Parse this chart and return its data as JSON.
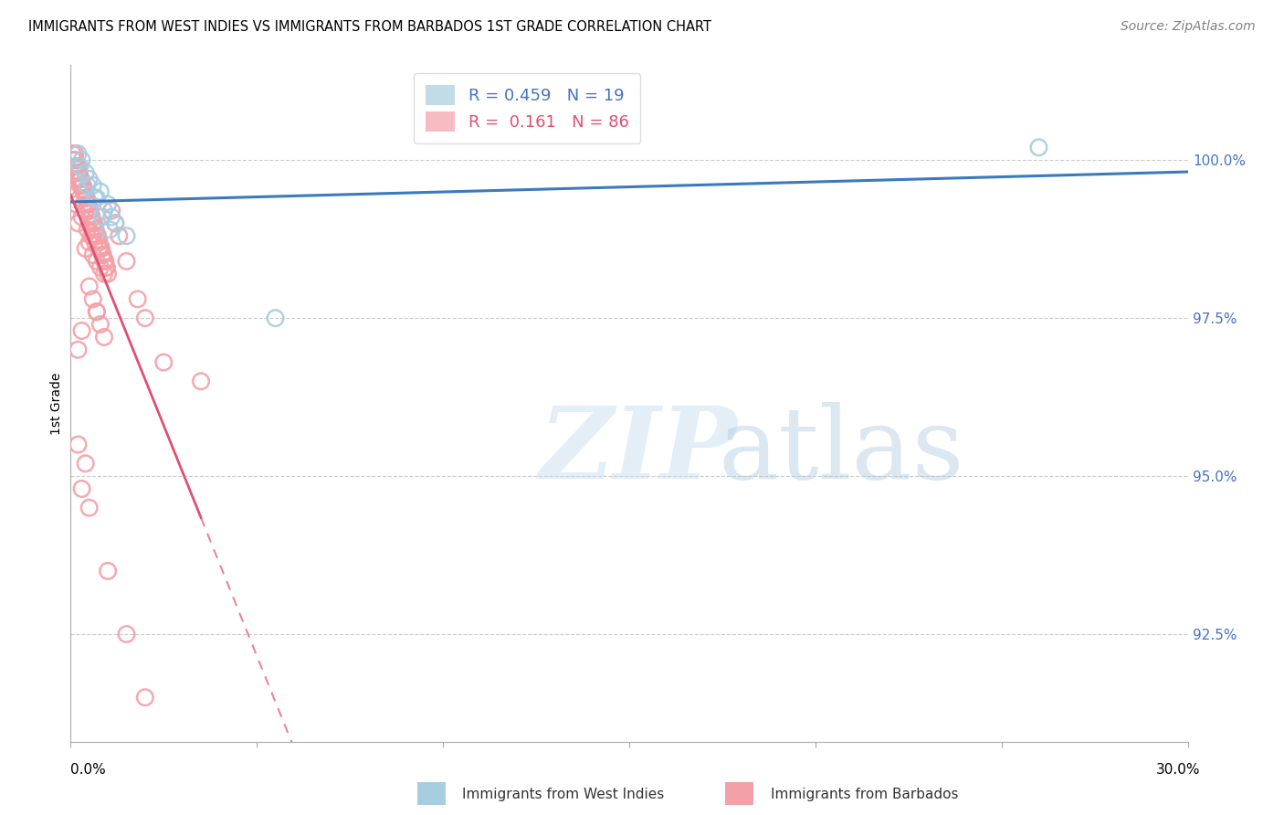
{
  "title": "IMMIGRANTS FROM WEST INDIES VS IMMIGRANTS FROM BARBADOS 1ST GRADE CORRELATION CHART",
  "source": "Source: ZipAtlas.com",
  "ylabel": "1st Grade",
  "ytick_labels": [
    "92.5%",
    "95.0%",
    "97.5%",
    "100.0%"
  ],
  "ytick_values": [
    92.5,
    95.0,
    97.5,
    100.0
  ],
  "xlim": [
    0.0,
    30.0
  ],
  "ylim": [
    90.8,
    101.5
  ],
  "legend_blue_label": "R = 0.459   N = 19",
  "legend_pink_label": "R =  0.161   N = 86",
  "blue_scatter_color": "#a8cce0",
  "pink_scatter_color": "#f4a0a8",
  "blue_line_color": "#3a7abf",
  "pink_line_color": "#e05070",
  "blue_legend_color": "#4472c4",
  "pink_legend_color": "#e05070",
  "grid_color": "#cccccc",
  "west_indies_x": [
    0.2,
    0.4,
    0.6,
    0.8,
    1.0,
    1.2,
    1.5,
    0.3,
    0.5,
    0.7,
    0.9,
    1.1,
    0.25,
    0.45,
    0.65,
    0.85,
    1.05,
    5.5,
    26.0
  ],
  "west_indies_y": [
    100.1,
    99.8,
    99.6,
    99.5,
    99.3,
    99.0,
    98.8,
    100.0,
    99.7,
    99.4,
    99.2,
    99.1,
    99.9,
    99.6,
    99.4,
    99.1,
    98.9,
    97.5,
    100.2
  ],
  "barbados_x": [
    0.05,
    0.1,
    0.12,
    0.15,
    0.18,
    0.2,
    0.22,
    0.25,
    0.28,
    0.3,
    0.32,
    0.35,
    0.38,
    0.4,
    0.42,
    0.45,
    0.48,
    0.5,
    0.55,
    0.6,
    0.65,
    0.7,
    0.75,
    0.8,
    0.85,
    0.9,
    0.95,
    1.0,
    0.08,
    0.13,
    0.17,
    0.23,
    0.27,
    0.33,
    0.37,
    0.43,
    0.47,
    0.53,
    0.57,
    0.63,
    0.67,
    0.73,
    0.77,
    0.83,
    0.87,
    0.93,
    0.97,
    1.1,
    1.2,
    1.3,
    1.5,
    1.8,
    2.0,
    0.35,
    0.25,
    0.15,
    0.4,
    0.5,
    0.6,
    0.3,
    0.2,
    0.45,
    0.55,
    0.65,
    0.35,
    0.75,
    0.85,
    0.1,
    0.25,
    0.15,
    0.5,
    0.4,
    0.6,
    0.7,
    0.8,
    0.9,
    0.3,
    0.2,
    0.7,
    2.5,
    3.5,
    0.5,
    0.6,
    0.7,
    0.8,
    0.9
  ],
  "barbados_y": [
    100.1,
    100.0,
    100.1,
    99.9,
    99.9,
    99.8,
    99.8,
    99.7,
    99.7,
    99.6,
    99.6,
    99.5,
    99.5,
    99.4,
    99.4,
    99.3,
    99.3,
    99.2,
    99.1,
    99.0,
    98.9,
    98.8,
    98.7,
    98.6,
    98.5,
    98.4,
    98.3,
    98.2,
    100.0,
    100.0,
    99.9,
    99.8,
    99.7,
    99.6,
    99.5,
    99.4,
    99.3,
    99.2,
    99.1,
    99.0,
    98.9,
    98.8,
    98.7,
    98.6,
    98.5,
    98.4,
    98.3,
    99.2,
    99.0,
    98.8,
    98.4,
    97.8,
    97.5,
    99.5,
    99.4,
    99.3,
    99.2,
    99.0,
    98.8,
    99.1,
    99.0,
    98.9,
    98.8,
    98.7,
    99.3,
    98.6,
    98.5,
    99.8,
    99.6,
    99.7,
    98.7,
    98.6,
    98.5,
    98.4,
    98.3,
    98.2,
    97.3,
    97.0,
    97.6,
    96.8,
    96.5,
    98.0,
    97.8,
    97.6,
    97.4,
    97.2
  ],
  "extra_barbados_x": [
    0.2,
    0.3,
    0.4,
    0.5,
    1.0,
    1.5,
    2.0
  ],
  "extra_barbados_y": [
    95.5,
    94.8,
    95.2,
    94.5,
    93.5,
    92.5,
    91.5
  ]
}
